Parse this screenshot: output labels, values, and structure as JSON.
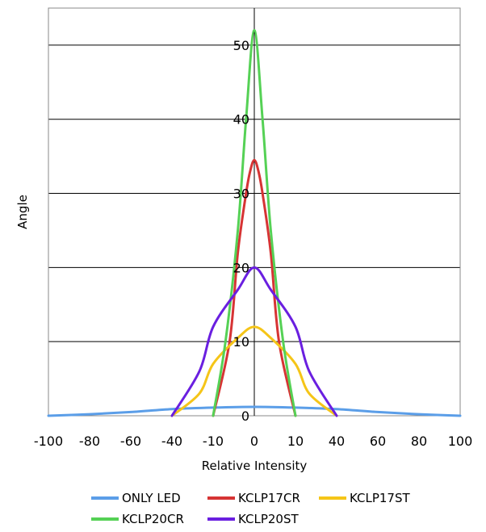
{
  "chart_data": {
    "type": "line",
    "xlabel": "Relative Intensity",
    "ylabel": "Angle",
    "x_ticks": [
      "-100",
      "-80",
      "-60",
      "-40",
      "-10",
      "0",
      "10",
      "40",
      "60",
      "80",
      "100"
    ],
    "y_ticks": [
      "0",
      "10",
      "20",
      "30",
      "40",
      "50"
    ],
    "ylim": [
      0,
      55
    ],
    "grid": "horizontal",
    "legend_position": "bottom",
    "series": [
      {
        "name": "ONLY LED",
        "color": "#5b9ee8",
        "points": [
          [
            -100,
            0
          ],
          [
            -80,
            0.2
          ],
          [
            -60,
            0.5
          ],
          [
            -40,
            0.9
          ],
          [
            -10,
            1.1
          ],
          [
            0,
            1.2
          ],
          [
            10,
            1.1
          ],
          [
            40,
            0.9
          ],
          [
            60,
            0.5
          ],
          [
            80,
            0.2
          ],
          [
            100,
            0
          ]
        ]
      },
      {
        "name": "KCLP17CR",
        "color": "#d63434",
        "points": [
          [
            -10,
            0
          ],
          [
            -6,
            10
          ],
          [
            -4,
            22
          ],
          [
            -2,
            30
          ],
          [
            -1,
            33
          ],
          [
            0,
            34.5
          ],
          [
            1,
            33
          ],
          [
            2,
            30
          ],
          [
            4,
            22
          ],
          [
            6,
            10
          ],
          [
            10,
            0
          ]
        ]
      },
      {
        "name": "KCLP17ST",
        "color": "#f5c518",
        "points": [
          [
            -40,
            0
          ],
          [
            -20,
            3
          ],
          [
            -10,
            7
          ],
          [
            -4,
            10.5
          ],
          [
            0,
            12
          ],
          [
            4,
            10.5
          ],
          [
            10,
            7
          ],
          [
            20,
            3
          ],
          [
            40,
            0
          ]
        ]
      },
      {
        "name": "KCLP20CR",
        "color": "#55d155",
        "points": [
          [
            -10,
            0
          ],
          [
            -7,
            10
          ],
          [
            -4,
            25
          ],
          [
            -2,
            40
          ],
          [
            0,
            52
          ],
          [
            2,
            40
          ],
          [
            4,
            25
          ],
          [
            7,
            10
          ],
          [
            10,
            0
          ]
        ]
      },
      {
        "name": "KCLP20ST",
        "color": "#6a1fe0",
        "points": [
          [
            -40,
            0
          ],
          [
            -20,
            6
          ],
          [
            -10,
            12
          ],
          [
            -4,
            17
          ],
          [
            0,
            20
          ],
          [
            4,
            17
          ],
          [
            10,
            12
          ],
          [
            20,
            6
          ],
          [
            40,
            0
          ]
        ]
      }
    ]
  }
}
